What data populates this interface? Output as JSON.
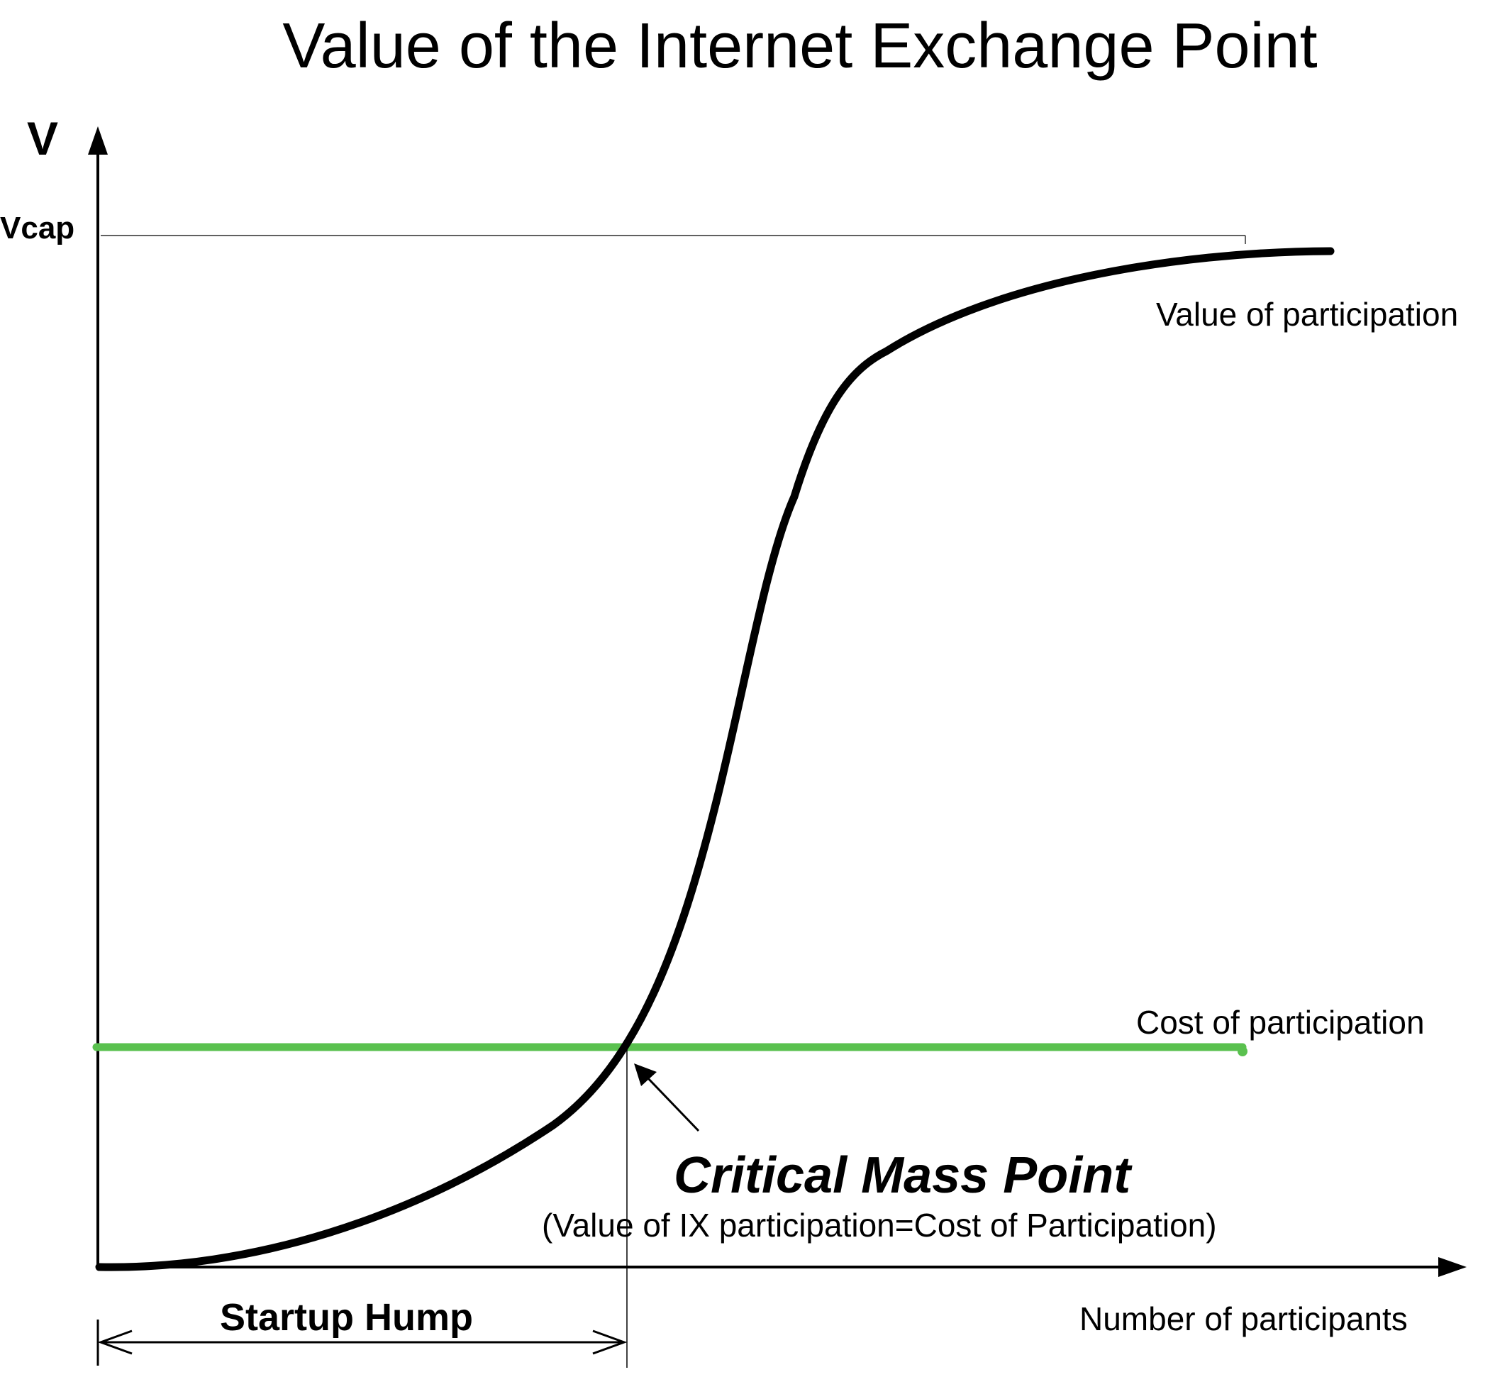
{
  "title": "Value of the Internet Exchange Point",
  "axes": {
    "y_label": "V",
    "y_cap_label": "Vcap",
    "x_label": "Number of participants"
  },
  "curves": {
    "value_label": "Value of participation",
    "cost_label": "Cost of participation"
  },
  "critical_mass": {
    "label": "Critical Mass Point",
    "subtitle": "(Value of IX participation=Cost of Participation)"
  },
  "startup_hump": {
    "label": "Startup Hump"
  },
  "colors": {
    "value_curve": "#000000",
    "cost_line": "#5ac14f",
    "axes": "#000000"
  }
}
